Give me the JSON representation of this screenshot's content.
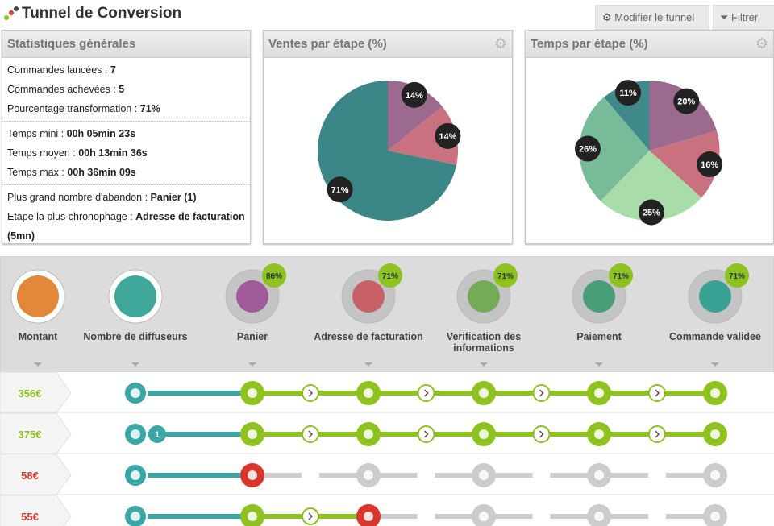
{
  "header": {
    "title": "Tunnel de Conversion",
    "buttons": [
      "Modifier le tunnel",
      "Filtrer"
    ]
  },
  "stats": {
    "title": "Statistiques générales",
    "groups": [
      [
        {
          "label": "Commandes lancées :",
          "value": "7"
        },
        {
          "label": "Commandes achevées :",
          "value": "5"
        },
        {
          "label": "Pourcentage transformation :",
          "value": "71%"
        }
      ],
      [
        {
          "label": "Temps mini :",
          "value": "00h 05min 23s"
        },
        {
          "label": "Temps moyen :",
          "value": "00h 13min 36s"
        },
        {
          "label": "Temps max :",
          "value": "00h 36min 09s"
        }
      ],
      [
        {
          "label": "Plus grand nombre d'abandon :",
          "value": "Panier (1)"
        },
        {
          "label": "Etape la plus chronophage :",
          "value": "Adresse de facturation (5mn)"
        }
      ]
    ]
  },
  "chart_data": [
    {
      "type": "pie",
      "title": "Ventes par étape (%)",
      "values": [
        14,
        14,
        71
      ],
      "value_labels": [
        "14%",
        "14%",
        "71%"
      ],
      "colors": [
        "#9b6a8e",
        "#c9717f",
        "#3b8787"
      ]
    },
    {
      "type": "pie",
      "title": "Temps par étape (%)",
      "values": [
        20,
        16,
        25,
        26,
        11
      ],
      "value_labels": [
        "20%",
        "16%",
        "25%",
        "26%",
        "11%"
      ],
      "colors": [
        "#9b6a8e",
        "#c9717f",
        "#a8dca9",
        "#77bb98",
        "#3f898b"
      ]
    }
  ],
  "funnel": {
    "steps": [
      {
        "label": "Montant"
      },
      {
        "label": "Nombre de diffuseurs"
      },
      {
        "label": "Panier",
        "badge": "86%"
      },
      {
        "label": "Adresse de facturation",
        "badge": "71%"
      },
      {
        "label": "Verification des informations",
        "badge": "71%"
      },
      {
        "label": "Paiement",
        "badge": "71%"
      },
      {
        "label": "Commande validee",
        "badge": "71%"
      }
    ],
    "rows": [
      {
        "amount": "356€"
      },
      {
        "amount": "375€",
        "count": "1"
      },
      {
        "amount": "58€"
      },
      {
        "amount": "55€"
      }
    ]
  }
}
